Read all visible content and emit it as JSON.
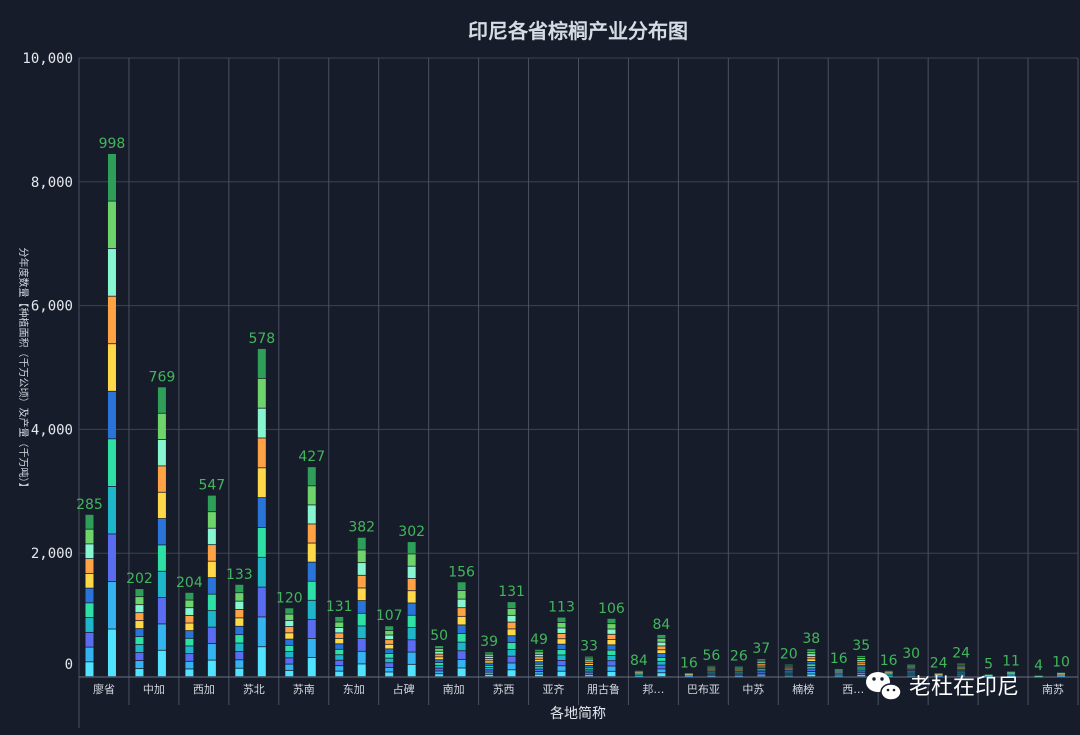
{
  "chart_data": {
    "type": "bar",
    "title": "印尼各省棕榈产业分布图",
    "xlabel": "各地简称",
    "ylabel": "分年度数量【种植面积（千万公顷）及产量（千万吨）】",
    "ylim": [
      0,
      10000
    ],
    "yticks": [
      "0",
      "2,000",
      "4,000",
      "6,000",
      "8,000",
      "10,000"
    ],
    "grid": true,
    "categories": [
      "廖省",
      "中加",
      "西加",
      "苏北",
      "苏南",
      "东加",
      "占碑",
      "南加",
      "苏西",
      "亚齐",
      "朋古鲁",
      "邦…",
      "巴布亚",
      "中苏",
      "楠榜",
      "西…",
      "",
      "",
      "",
      "南苏"
    ],
    "series": [
      {
        "name": "种植面积",
        "values": [
          2620,
          1420,
          1360,
          1490,
          1110,
          970,
          820,
          500,
          400,
          440,
          330,
          100,
          60,
          170,
          200,
          130,
          100,
          60,
          40,
          20
        ],
        "labels": [
          "285",
          "202",
          "204",
          "133",
          "120",
          "131",
          "107",
          "50",
          "39",
          "49",
          "33",
          "84",
          "16",
          "26",
          "20",
          "16",
          "16",
          "24",
          "5",
          "4"
        ]
      },
      {
        "name": "产量",
        "values": [
          8450,
          4680,
          2930,
          5300,
          3390,
          2250,
          2180,
          1530,
          1210,
          960,
          940,
          680,
          180,
          290,
          450,
          340,
          210,
          220,
          90,
          70
        ],
        "labels": [
          "998",
          "769",
          "547",
          "578",
          "427",
          "382",
          "302",
          "156",
          "131",
          "113",
          "106",
          "84",
          "56",
          "37",
          "38",
          "35",
          "30",
          "24",
          "11",
          "10"
        ]
      }
    ],
    "palette": [
      "#4fe3ff",
      "#35b2f0",
      "#5a6cf0",
      "#1fb6c9",
      "#2fe0a6",
      "#2a73d9",
      "#ffd84a",
      "#ffa245",
      "#86f5d0",
      "#6ed36a",
      "#2f9e58"
    ]
  },
  "watermark": {
    "text": "老杜在印尼",
    "icon": "wechat-icon"
  }
}
